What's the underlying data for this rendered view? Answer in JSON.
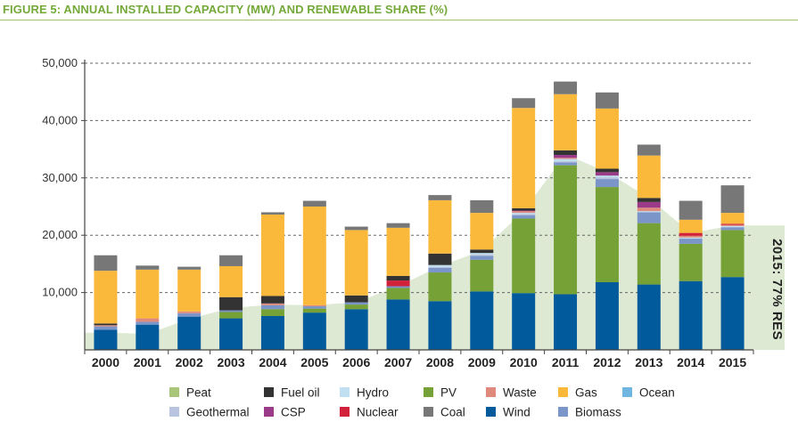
{
  "figure_title": "FIGURE 5: ANNUAL INSTALLED CAPACITY (MW) AND RENEWABLE SHARE (%)",
  "colors": {
    "title_green": "#74a93a",
    "res_area": "#dde9d2",
    "grid": "#666666"
  },
  "chart_data": {
    "type": "bar",
    "stacked": true,
    "title": "FIGURE 5: ANNUAL INSTALLED CAPACITY (MW) AND RENEWABLE SHARE (%)",
    "xlabel": "",
    "ylabel": "",
    "ylim": [
      0,
      50000
    ],
    "y_ticks": [
      10000,
      20000,
      30000,
      40000,
      50000
    ],
    "y_tick_labels": [
      "10,000",
      "20,000",
      "30,000",
      "40,000",
      "50,000"
    ],
    "grid": "horizontal-dashed",
    "legend_position": "bottom",
    "categories": [
      "2000",
      "2001",
      "2002",
      "2003",
      "2004",
      "2005",
      "2006",
      "2007",
      "2008",
      "2009",
      "2010",
      "2011",
      "2012",
      "2013",
      "2014",
      "2015"
    ],
    "series": [
      {
        "name": "Wind",
        "color": "#005a9c",
        "values": [
          3500,
          4400,
          5800,
          5500,
          5900,
          6500,
          7100,
          8800,
          8500,
          10200,
          9900,
          9700,
          11800,
          11400,
          12000,
          12700
        ]
      },
      {
        "name": "PV",
        "color": "#76a136",
        "values": [
          0,
          0,
          0,
          1100,
          1200,
          700,
          800,
          2000,
          5000,
          5500,
          13000,
          22500,
          16600,
          10700,
          6500,
          8200
        ]
      },
      {
        "name": "Biomass",
        "color": "#7b95c8",
        "values": [
          600,
          500,
          600,
          300,
          700,
          400,
          400,
          300,
          800,
          700,
          600,
          500,
          1400,
          1900,
          900,
          500
        ]
      },
      {
        "name": "Geothermal",
        "color": "#b8c4e0",
        "values": [
          0,
          0,
          0,
          0,
          0,
          0,
          0,
          0,
          200,
          200,
          200,
          200,
          300,
          0,
          0,
          0
        ]
      },
      {
        "name": "Hydro",
        "color": "#c0dff1",
        "values": [
          0,
          0,
          0,
          0,
          0,
          0,
          0,
          0,
          300,
          300,
          200,
          400,
          300,
          200,
          200,
          200
        ]
      },
      {
        "name": "Ocean",
        "color": "#6fb6e0",
        "values": [
          0,
          0,
          0,
          0,
          0,
          0,
          0,
          0,
          0,
          0,
          0,
          0,
          0,
          0,
          0,
          0
        ]
      },
      {
        "name": "Peat",
        "color": "#a8c57a",
        "values": [
          0,
          0,
          0,
          0,
          0,
          0,
          0,
          0,
          0,
          0,
          0,
          0,
          0,
          0,
          0,
          0
        ]
      },
      {
        "name": "Waste",
        "color": "#e08a7d",
        "values": [
          200,
          600,
          300,
          0,
          300,
          200,
          0,
          0,
          0,
          0,
          300,
          200,
          0,
          600,
          300,
          200
        ]
      },
      {
        "name": "CSP",
        "color": "#9c3a8a",
        "values": [
          0,
          0,
          0,
          0,
          0,
          0,
          0,
          0,
          0,
          0,
          100,
          500,
          600,
          1000,
          0,
          0
        ]
      },
      {
        "name": "Nuclear",
        "color": "#d1213b",
        "values": [
          0,
          0,
          0,
          0,
          0,
          0,
          0,
          1000,
          0,
          0,
          0,
          0,
          0,
          0,
          500,
          200
        ]
      },
      {
        "name": "Fuel oil",
        "color": "#333333",
        "values": [
          300,
          0,
          0,
          2300,
          1300,
          0,
          1200,
          800,
          2000,
          600,
          400,
          800,
          600,
          700,
          0,
          0
        ]
      },
      {
        "name": "Gas",
        "color": "#fbb93c",
        "values": [
          9200,
          8500,
          7300,
          5400,
          14200,
          17200,
          11400,
          8400,
          9300,
          6400,
          17500,
          9800,
          10500,
          7400,
          2300,
          1900
        ]
      },
      {
        "name": "Coal",
        "color": "#777777",
        "values": [
          2700,
          700,
          500,
          1900,
          400,
          1000,
          600,
          800,
          900,
          2200,
          1700,
          2200,
          2800,
          1900,
          3300,
          4800
        ]
      }
    ],
    "res_share_area": {
      "values": [
        3000,
        2800,
        5400,
        7300,
        7900,
        7800,
        8300,
        11100,
        14600,
        17300,
        24200,
        34100,
        31000,
        26500,
        20400,
        21700
      ],
      "label": "2015: 77% RES"
    }
  },
  "legend": [
    {
      "name": "Peat",
      "color": "#a8c57a"
    },
    {
      "name": "Fuel oil",
      "color": "#333333"
    },
    {
      "name": "Hydro",
      "color": "#c0dff1"
    },
    {
      "name": "PV",
      "color": "#76a136"
    },
    {
      "name": "Waste",
      "color": "#e08a7d"
    },
    {
      "name": "Gas",
      "color": "#fbb93c"
    },
    {
      "name": "Ocean",
      "color": "#6fb6e0"
    },
    {
      "name": "Geothermal",
      "color": "#b8c4e0"
    },
    {
      "name": "CSP",
      "color": "#9c3a8a"
    },
    {
      "name": "Nuclear",
      "color": "#d1213b"
    },
    {
      "name": "Coal",
      "color": "#777777"
    },
    {
      "name": "Wind",
      "color": "#005a9c"
    },
    {
      "name": "Biomass",
      "color": "#7b95c8"
    }
  ]
}
